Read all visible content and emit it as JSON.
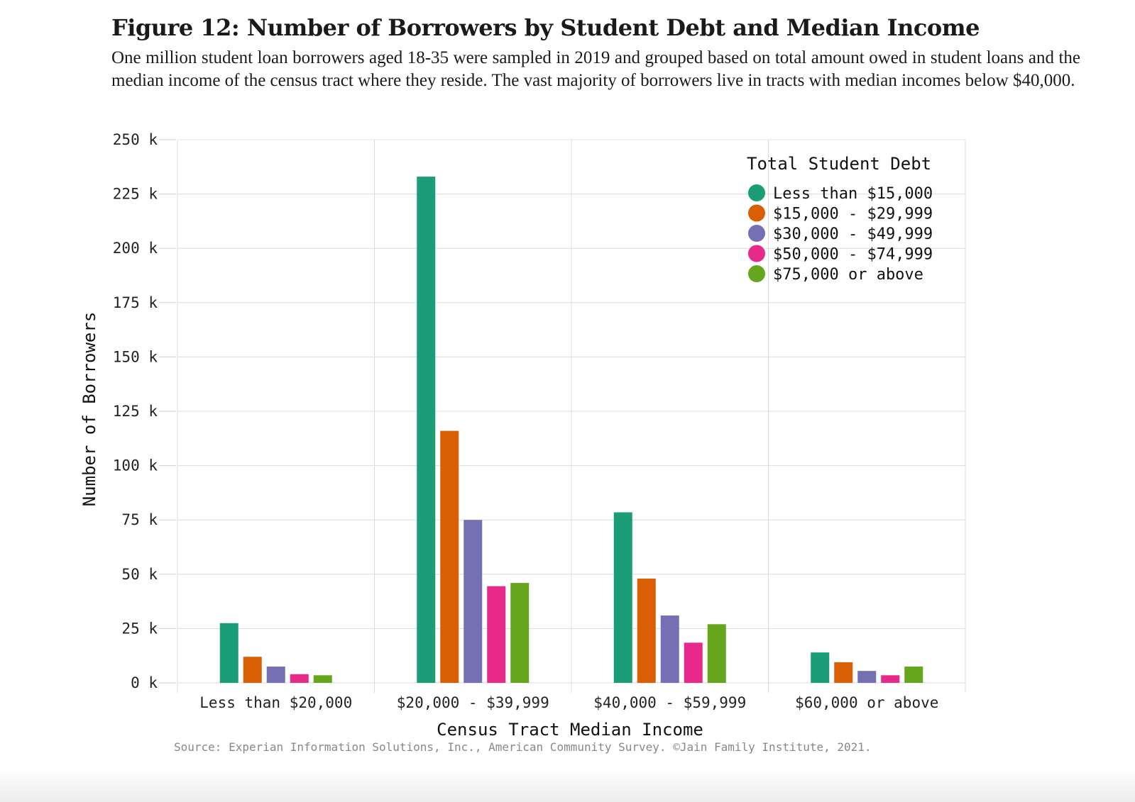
{
  "figure": {
    "title": "Figure 12: Number of Borrowers by Student Debt and Median Income",
    "subtitle": "One million student loan borrowers aged 18-35 were sampled in 2019 and grouped based on total amount owed in student loans and the median income of the census tract where they reside. The vast majority of borrowers live in tracts with median incomes below $40,000.",
    "source": "Source: Experian Information Solutions, Inc., American Community Survey. ©Jain Family Institute, 2021."
  },
  "chart_data": {
    "type": "bar",
    "categories": [
      "Less than $20,000",
      "$20,000 - $39,999",
      "$40,000 - $59,999",
      "$60,000 or above"
    ],
    "series": [
      {
        "name": "Less than $15,000",
        "color": "#1b9e77",
        "values": [
          27500,
          233000,
          78500,
          14000
        ]
      },
      {
        "name": "$15,000 - $29,999",
        "color": "#d95f02",
        "values": [
          12000,
          116000,
          48000,
          9500
        ]
      },
      {
        "name": "$30,000 - $49,999",
        "color": "#7570b3",
        "values": [
          7500,
          75000,
          31000,
          5500
        ]
      },
      {
        "name": "$50,000 - $74,999",
        "color": "#e7298a",
        "values": [
          4000,
          44500,
          18500,
          3500
        ]
      },
      {
        "name": "$75,000 or above",
        "color": "#66a61e",
        "values": [
          3500,
          46000,
          27000,
          7500
        ]
      }
    ],
    "xlabel": "Census Tract Median Income",
    "ylabel": "Number of Borrowers",
    "ylim": [
      0,
      250000
    ],
    "yticks": [
      0,
      25000,
      50000,
      75000,
      100000,
      125000,
      150000,
      175000,
      200000,
      225000,
      250000
    ],
    "ytick_labels": [
      "0 k",
      "25 k",
      "50 k",
      "75 k",
      "100 k",
      "125 k",
      "150 k",
      "175 k",
      "200 k",
      "225 k",
      "250 k"
    ],
    "legend": {
      "title": "Total Student Debt",
      "position": "top-right"
    },
    "grid": true
  }
}
